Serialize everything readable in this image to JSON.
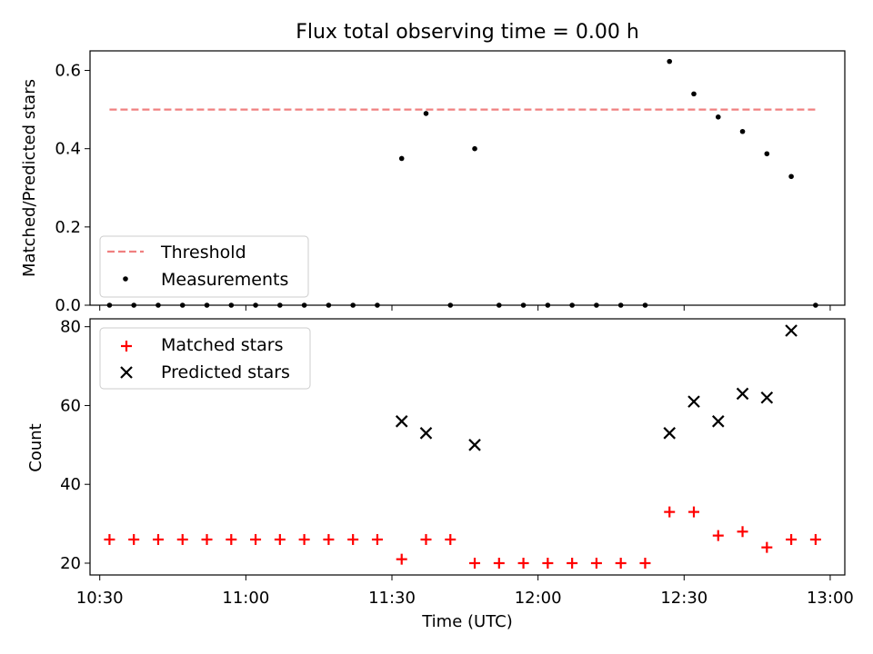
{
  "chart_data": [
    {
      "type": "scatter",
      "title": "Flux total observing time = 0.00 h",
      "ylabel": "Matched/Predicted stars",
      "xlabel": "",
      "xlim": [
        "10:28",
        "13:03"
      ],
      "ylim": [
        0,
        0.65
      ],
      "yticks": [
        0,
        0.2,
        0.4,
        0.6
      ],
      "ytick_labels": [
        "0.0",
        "0.2",
        "0.4",
        "0.6"
      ],
      "legend_position": "bottom-left",
      "threshold": {
        "name": "Threshold",
        "value": 0.5,
        "x_start": "10:32",
        "x_end": "12:57",
        "color": "#f08080"
      },
      "series": [
        {
          "name": "Measurements",
          "color": "#000000",
          "points": [
            [
              "10:32",
              0
            ],
            [
              "10:37",
              0
            ],
            [
              "10:42",
              0
            ],
            [
              "10:47",
              0
            ],
            [
              "10:52",
              0
            ],
            [
              "10:57",
              0
            ],
            [
              "11:02",
              0
            ],
            [
              "11:07",
              0
            ],
            [
              "11:12",
              0
            ],
            [
              "11:17",
              0
            ],
            [
              "11:22",
              0
            ],
            [
              "11:27",
              0
            ],
            [
              "11:32",
              0.375
            ],
            [
              "11:37",
              0.49
            ],
            [
              "11:42",
              0
            ],
            [
              "11:47",
              0.4
            ],
            [
              "11:52",
              0
            ],
            [
              "11:57",
              0
            ],
            [
              "12:02",
              0
            ],
            [
              "12:07",
              0
            ],
            [
              "12:12",
              0
            ],
            [
              "12:17",
              0
            ],
            [
              "12:22",
              0
            ],
            [
              "12:27",
              0.623
            ],
            [
              "12:32",
              0.54
            ],
            [
              "12:37",
              0.481
            ],
            [
              "12:42",
              0.444
            ],
            [
              "12:47",
              0.387
            ],
            [
              "12:52",
              0.329
            ],
            [
              "12:57",
              0
            ]
          ]
        }
      ]
    },
    {
      "type": "scatter",
      "title": "",
      "ylabel": "Count",
      "xlabel": "Time (UTC)",
      "xlim": [
        "10:28",
        "13:03"
      ],
      "ylim": [
        17,
        82
      ],
      "yticks": [
        20,
        40,
        60,
        80
      ],
      "ytick_labels": [
        "20",
        "40",
        "60",
        "80"
      ],
      "xticks": [
        "10:30",
        "11:00",
        "11:30",
        "12:00",
        "12:30",
        "13:00"
      ],
      "legend_position": "top-left",
      "series": [
        {
          "name": "Matched stars",
          "marker": "plus",
          "color": "#ff0000",
          "points": [
            [
              "10:32",
              26
            ],
            [
              "10:37",
              26
            ],
            [
              "10:42",
              26
            ],
            [
              "10:47",
              26
            ],
            [
              "10:52",
              26
            ],
            [
              "10:57",
              26
            ],
            [
              "11:02",
              26
            ],
            [
              "11:07",
              26
            ],
            [
              "11:12",
              26
            ],
            [
              "11:17",
              26
            ],
            [
              "11:22",
              26
            ],
            [
              "11:27",
              26
            ],
            [
              "11:32",
              21
            ],
            [
              "11:37",
              26
            ],
            [
              "11:42",
              26
            ],
            [
              "11:47",
              20
            ],
            [
              "11:52",
              20
            ],
            [
              "11:57",
              20
            ],
            [
              "12:02",
              20
            ],
            [
              "12:07",
              20
            ],
            [
              "12:12",
              20
            ],
            [
              "12:17",
              20
            ],
            [
              "12:22",
              20
            ],
            [
              "12:27",
              33
            ],
            [
              "12:32",
              33
            ],
            [
              "12:37",
              27
            ],
            [
              "12:42",
              28
            ],
            [
              "12:47",
              24
            ],
            [
              "12:52",
              26
            ],
            [
              "12:57",
              26
            ]
          ]
        },
        {
          "name": "Predicted stars",
          "marker": "x",
          "color": "#000000",
          "points": [
            [
              "11:32",
              56
            ],
            [
              "11:37",
              53
            ],
            [
              "11:47",
              50
            ],
            [
              "12:27",
              53
            ],
            [
              "12:32",
              61
            ],
            [
              "12:37",
              56
            ],
            [
              "12:42",
              63
            ],
            [
              "12:47",
              62
            ],
            [
              "12:52",
              79
            ]
          ]
        }
      ]
    }
  ]
}
